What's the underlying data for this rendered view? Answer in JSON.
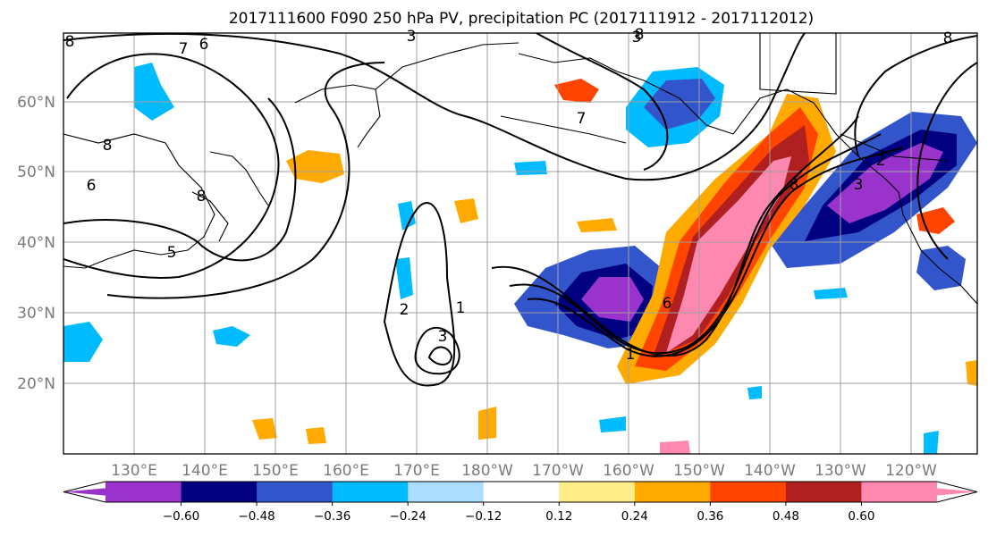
{
  "figure": {
    "title": "2017111600 F090 250 hPa PV, precipitation PC (2017111912 - 2017112012)"
  },
  "map": {
    "lat_labels": [
      "60°N",
      "50°N",
      "40°N",
      "30°N",
      "20°N"
    ],
    "lon_labels": [
      "130°E",
      "140°E",
      "150°E",
      "160°E",
      "170°E",
      "180°W",
      "170°W",
      "160°W",
      "150°W",
      "140°W",
      "130°W",
      "120°W"
    ],
    "contour_labels": [
      "8",
      "7",
      "6",
      "3",
      "8",
      "3",
      "7",
      "8",
      "8",
      "6",
      "8",
      "5",
      "2",
      "1",
      "3",
      "1",
      "6",
      "8",
      "3",
      "2"
    ],
    "colors": {
      "coast": "#000000",
      "contour": "#000000",
      "grid": "#a0a0a0"
    }
  },
  "colorbar": {
    "colors": [
      "#9933cc",
      "#000080",
      "#3355cc",
      "#00bbff",
      "#aaddff",
      "#ffffff",
      "#ffee88",
      "#ffaa00",
      "#ff4400",
      "#b02020",
      "#ff88b0"
    ],
    "ticks": [
      "−0.60",
      "−0.48",
      "−0.36",
      "−0.24",
      "−0.12",
      "0.12",
      "0.24",
      "0.36",
      "0.48",
      "0.60"
    ]
  }
}
